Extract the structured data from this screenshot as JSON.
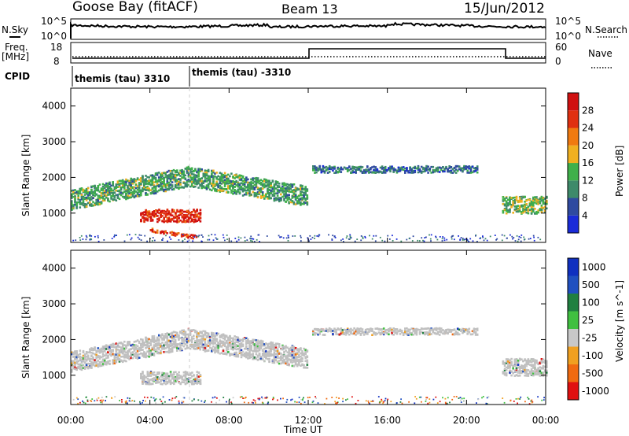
{
  "header": {
    "station": "Goose Bay (fitACF)",
    "beam": "Beam 13",
    "date": "15/Jun/2012"
  },
  "panels": {
    "nsky": {
      "label": "N.Sky",
      "tick_top": "10^5",
      "tick_bottom": "10^0",
      "right_label": "N.Search",
      "right_top": "10^5",
      "right_bottom": "10^0"
    },
    "freq": {
      "label_top": "Freq.",
      "label_bottom": "[MHz]",
      "tick_top": "18",
      "tick_bottom": "8",
      "right_top": "60",
      "right_bottom": "0",
      "right_label": "Nave"
    },
    "cpid": {
      "label": "CPID",
      "segments": [
        {
          "name": "themis (tau) 3310",
          "start_hour": 0,
          "end_hour": 6.0
        },
        {
          "name": "themis (tau) -3310",
          "start_hour": 6.0,
          "end_hour": 24
        }
      ]
    }
  },
  "axes": {
    "xlabel": "Time UT",
    "x_ticks": [
      "00:00",
      "04:00",
      "08:00",
      "12:00",
      "16:00",
      "20:00",
      "00:00"
    ],
    "ylabel": "Slant Range [km]",
    "y_ticks": [
      "1000",
      "2000",
      "3000",
      "4000"
    ],
    "ylim": [
      180,
      4500
    ],
    "xlim_hours": [
      0,
      24
    ]
  },
  "colors": {
    "power": [
      "#1a2bd8",
      "#2f4aa0",
      "#3e8a6a",
      "#3fb04a",
      "#f0b020",
      "#f07a10",
      "#e03010",
      "#d01010"
    ],
    "velocity": [
      "#e01010",
      "#f06a10",
      "#f0a020",
      "#c8c8c8",
      "#40c040",
      "#208040",
      "#2050c0",
      "#1030c0"
    ],
    "ground": "#c0c0c0"
  },
  "chart_data": [
    {
      "type": "heatmap",
      "title": "",
      "quantity": "Power",
      "colorbar_label": "Power [dB]",
      "colorbar_ticks": [
        "4",
        "8",
        "12",
        "16",
        "20",
        "24",
        "28"
      ],
      "colorbar_range": [
        0,
        32
      ],
      "x": "time_hours",
      "y": "slant_range_km",
      "regions": [
        {
          "name": "evening broad band",
          "t": [
            0.0,
            11.9
          ],
          "r_center": [
            1400,
            2050,
            1500
          ],
          "width": 350,
          "value": 12
        },
        {
          "name": "intense patch",
          "t": [
            3.5,
            6.5
          ],
          "r_center": [
            950,
            950
          ],
          "width": 220,
          "value": 28
        },
        {
          "name": "near range line",
          "t": [
            4.0,
            6.3
          ],
          "r_center": [
            550,
            350
          ],
          "width": 60,
          "value": 26
        },
        {
          "name": "late high range",
          "t": [
            12.2,
            20.5
          ],
          "r_center": [
            2250,
            2250
          ],
          "width": 120,
          "value": 8
        },
        {
          "name": "dawn band",
          "t": [
            21.8,
            24.0
          ],
          "r_center": [
            1250,
            1250
          ],
          "width": 300,
          "value": 14
        }
      ]
    },
    {
      "type": "heatmap",
      "title": "",
      "quantity": "Velocity",
      "colorbar_label": "Velocity [m s^-1]",
      "colorbar_ticks": [
        "1000",
        "500",
        "100",
        "25",
        "-25",
        "-100",
        "-500",
        "-1000"
      ],
      "colorbar_range": [
        -1000,
        1000
      ],
      "x": "time_hours",
      "y": "slant_range_km",
      "regions": [
        {
          "name": "ground scatter band",
          "t": [
            0.0,
            11.9
          ],
          "r_center": [
            1400,
            2050,
            1500
          ],
          "width": 350,
          "value": 0
        },
        {
          "name": "lower ground patch",
          "t": [
            3.5,
            6.5
          ],
          "r_center": [
            950,
            950
          ],
          "width": 220,
          "value": 0
        },
        {
          "name": "late band",
          "t": [
            12.2,
            20.5
          ],
          "r_center": [
            2250,
            2250
          ],
          "width": 120,
          "value": 0
        },
        {
          "name": "dawn ground band",
          "t": [
            21.8,
            24.0
          ],
          "r_center": [
            1250,
            1250
          ],
          "width": 300,
          "value": 0
        }
      ]
    }
  ]
}
